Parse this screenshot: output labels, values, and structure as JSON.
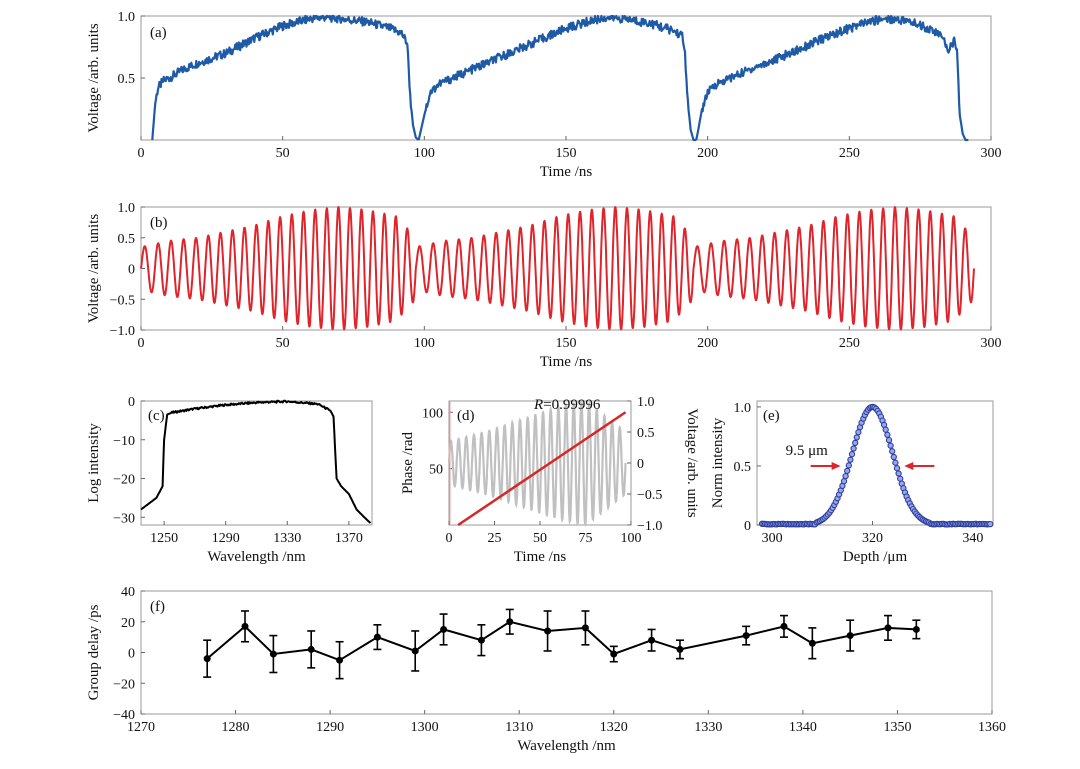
{
  "panels": {
    "a": {
      "tag": "(a)",
      "chart_data": {
        "type": "line",
        "xlabel": "Time /ns",
        "ylabel": "Voltage /arb. units",
        "xlim": [
          0,
          300
        ],
        "ylim": [
          0,
          1.0
        ],
        "xticks": [
          0,
          50,
          100,
          150,
          200,
          250,
          300
        ],
        "yticks": [
          0.5,
          1.0
        ],
        "ytick_labels": [
          "0.5",
          "1.0"
        ],
        "color": "#1f5aa6",
        "sweeps": [
          {
            "x": [
              4,
              5,
              6,
              8,
              10,
              15,
              20,
              30,
              40,
              50,
              60,
              65,
              70,
              80,
              88,
              92,
              94,
              95,
              96,
              97,
              98
            ],
            "y": [
              0.0,
              0.3,
              0.42,
              0.48,
              0.5,
              0.57,
              0.62,
              0.7,
              0.82,
              0.92,
              0.98,
              0.99,
              0.98,
              0.95,
              0.9,
              0.86,
              0.78,
              0.35,
              0.12,
              0.02,
              0.0
            ]
          },
          {
            "x": [
              98,
              100,
              102,
              105,
              110,
              120,
              130,
              140,
              150,
              160,
              165,
              170,
              180,
              188,
              191,
              192,
              193,
              194,
              195,
              196
            ],
            "y": [
              0.0,
              0.2,
              0.38,
              0.45,
              0.5,
              0.6,
              0.7,
              0.8,
              0.9,
              0.97,
              0.99,
              0.98,
              0.94,
              0.88,
              0.84,
              0.7,
              0.3,
              0.08,
              0.0,
              0.0
            ]
          },
          {
            "x": [
              196,
              198,
              200,
              203,
              208,
              215,
              225,
              235,
              245,
              255,
              262,
              268,
              275,
              282,
              285,
              287,
              288,
              289,
              290,
              291,
              292
            ],
            "y": [
              0.0,
              0.25,
              0.38,
              0.45,
              0.5,
              0.57,
              0.66,
              0.76,
              0.86,
              0.94,
              0.98,
              0.97,
              0.93,
              0.85,
              0.73,
              0.8,
              0.7,
              0.2,
              0.05,
              0.0,
              0.0
            ]
          }
        ]
      }
    },
    "b": {
      "tag": "(b)",
      "chart_data": {
        "type": "line",
        "xlabel": "Time /ns",
        "ylabel": "Voltage /arb. units",
        "xlim": [
          0,
          300
        ],
        "ylim": [
          -1.0,
          1.0
        ],
        "xticks": [
          0,
          50,
          100,
          150,
          200,
          250,
          300
        ],
        "yticks": [
          -1.0,
          -0.5,
          0,
          0.5,
          1.0
        ],
        "ytick_labels": [
          "−1.0",
          "−0.5",
          "0",
          "0.5",
          "1.0"
        ],
        "color": "#e0242b",
        "segments_ns": [
          [
            0,
            97
          ],
          [
            97,
            195
          ],
          [
            195,
            294
          ]
        ],
        "periods_per_segment": 23,
        "amplitude_envelope": {
          "x": [
            0,
            10,
            20,
            30,
            40,
            50,
            60,
            70,
            80,
            90,
            97
          ],
          "y": [
            0.35,
            0.45,
            0.5,
            0.6,
            0.7,
            0.85,
            0.95,
            1.0,
            0.95,
            0.85,
            0.5
          ]
        }
      }
    },
    "c": {
      "tag": "(c)",
      "chart_data": {
        "type": "line",
        "xlabel": "Wavelength /nm",
        "ylabel": "Log intensity",
        "xlim": [
          1235,
          1385
        ],
        "ylim": [
          -32,
          0
        ],
        "xticks": [
          1250,
          1290,
          1330,
          1370
        ],
        "yticks": [
          -30,
          -20,
          -10,
          0
        ],
        "ytick_labels": [
          "−30",
          "−20",
          "−10",
          "0"
        ],
        "color": "#000000",
        "x": [
          1235,
          1245,
          1249,
          1250,
          1252,
          1255,
          1270,
          1290,
          1310,
          1330,
          1350,
          1358,
          1360,
          1362,
          1365,
          1370,
          1375,
          1380,
          1384
        ],
        "y": [
          -28,
          -25,
          -22,
          -10,
          -3.5,
          -3.0,
          -2.0,
          -1.0,
          -0.4,
          -0.1,
          -0.8,
          -2.5,
          -4,
          -20,
          -22,
          -24,
          -28,
          -30,
          -31.5
        ]
      }
    },
    "d": {
      "tag": "(d)",
      "annotation": "R=0.99996",
      "annotation_italic": "R",
      "annotation_rest": "=0.99996",
      "chart_data": {
        "type": "line",
        "xlabel": "Time /ns",
        "ylabel": "Phase /rad",
        "y2label": "Voltage /arb. units",
        "xlim": [
          0,
          100
        ],
        "ylim": [
          0,
          110
        ],
        "y2lim": [
          -1.0,
          1.0
        ],
        "xticks": [
          0,
          25,
          50,
          75,
          100
        ],
        "yticks": [
          50,
          100
        ],
        "y2ticks": [
          -1.0,
          -0.5,
          0,
          0.5,
          1.0
        ],
        "y2tick_labels": [
          "−1.0",
          "−0.5",
          "0",
          "0.5",
          "1.0"
        ],
        "series": [
          {
            "name": "",
            "type": "line",
            "axis": "left",
            "color": "#d62728",
            "x": [
              5,
              97
            ],
            "y": [
              0,
              100
            ]
          },
          {
            "name": "",
            "type": "line",
            "axis": "right",
            "color": "#c0c0c0",
            "x_range": [
              0,
              97
            ],
            "periods": 23,
            "amplitude_envelope": {
              "x": [
                0,
                20,
                40,
                60,
                75,
                97
              ],
              "y": [
                0.35,
                0.5,
                0.7,
                0.9,
                1.0,
                0.5
              ]
            }
          }
        ]
      }
    },
    "e": {
      "tag": "(e)",
      "annotation": "9.5 μm",
      "chart_data": {
        "type": "scatter",
        "xlabel": "Depth /μm",
        "ylabel": "Norm intensity",
        "xlim": [
          297,
          344
        ],
        "ylim": [
          0,
          1.05
        ],
        "xticks": [
          300,
          320,
          340
        ],
        "yticks": [
          0,
          0.5,
          1.0
        ],
        "ytick_labels": [
          "0",
          "0.5",
          "1.0"
        ],
        "color": "#2c3e9e",
        "peak_x": 320,
        "fwhm_um": 9.5,
        "fwhm_markers_x": [
          315.25,
          324.75
        ],
        "fwhm_marker_y": 0.5
      }
    },
    "f": {
      "tag": "(f)",
      "chart_data": {
        "type": "line",
        "xlabel": "Wavelength /nm",
        "ylabel": "Group delay /ps",
        "xlim": [
          1270,
          1360
        ],
        "ylim": [
          -40,
          40
        ],
        "xticks": [
          1270,
          1280,
          1290,
          1300,
          1310,
          1320,
          1330,
          1340,
          1350,
          1360
        ],
        "yticks": [
          -40,
          -20,
          0,
          20,
          40
        ],
        "ytick_labels": [
          "−40",
          "−20",
          "0",
          "20",
          "40"
        ],
        "color": "#000000",
        "x": [
          1277,
          1281,
          1284,
          1288,
          1291,
          1295,
          1299,
          1302,
          1306,
          1309,
          1313,
          1317,
          1320,
          1324,
          1327,
          1334,
          1338,
          1341,
          1345,
          1349,
          1352
        ],
        "y": [
          -4,
          17,
          -1,
          2,
          -5,
          10,
          1,
          15,
          8,
          20,
          14,
          16,
          -1,
          8,
          2,
          11,
          17,
          6,
          11,
          16,
          15
        ],
        "err": [
          12,
          10,
          12,
          12,
          12,
          8,
          13,
          10,
          10,
          8,
          13,
          11,
          5,
          7,
          6,
          6,
          7,
          10,
          10,
          8,
          6
        ]
      }
    }
  }
}
